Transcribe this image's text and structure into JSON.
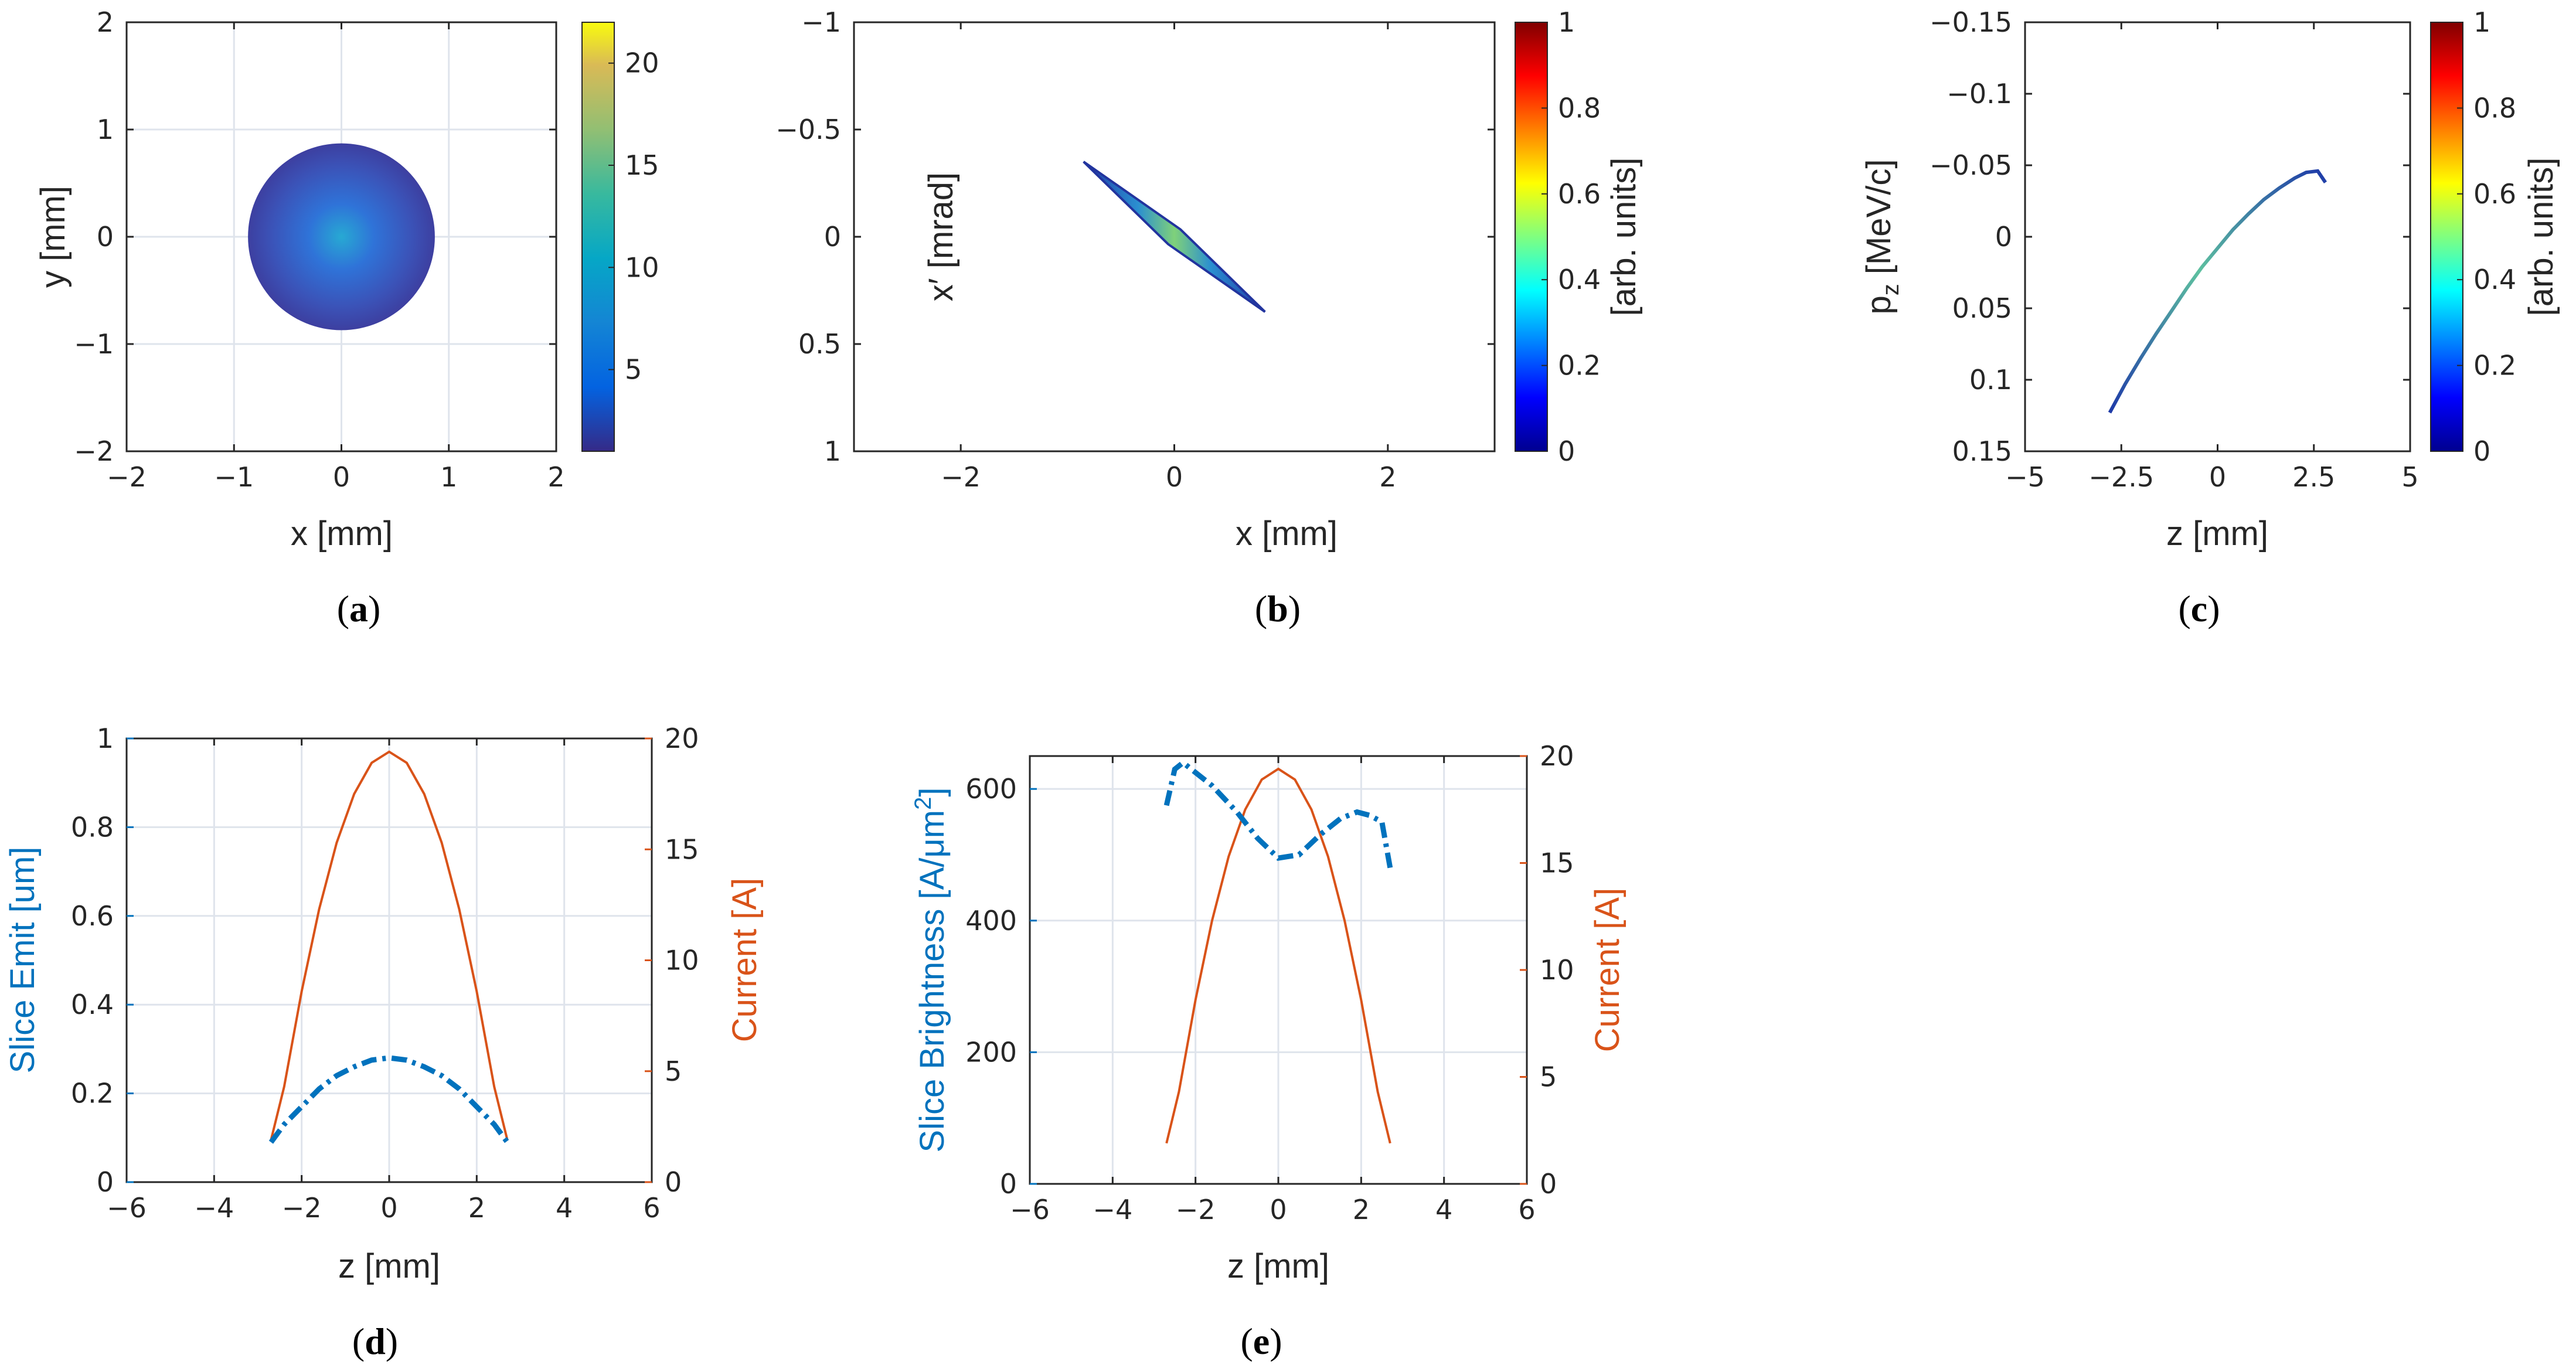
{
  "colors": {
    "blue": "#0072BD",
    "orange": "#D95319",
    "grid": "#dfe4ec",
    "axis": "#262626"
  },
  "chart_data": [
    {
      "id": "a",
      "type": "heatmap",
      "caption": "(a)",
      "xlabel": "x [mm]",
      "ylabel": "y [mm]",
      "xlim": [
        -2,
        2
      ],
      "ylim": [
        -2,
        2
      ],
      "xticks": [
        -2,
        -1,
        0,
        1,
        2
      ],
      "yticks": [
        2,
        1,
        0,
        -1,
        -2
      ],
      "xtick_labels": [
        "−2",
        "−1",
        "0",
        "1",
        "2"
      ],
      "ytick_labels": [
        "2",
        "1",
        "0",
        "−1",
        "−2"
      ],
      "grid": true,
      "beam": {
        "shape": "disk",
        "center": [
          0,
          0
        ],
        "radius_mm": 0.87
      },
      "colorbar": {
        "colormap": "parula",
        "range": [
          1,
          22
        ],
        "ticks": [
          5,
          10,
          15,
          20
        ],
        "tick_labels": [
          "5",
          "10",
          "15",
          "20"
        ],
        "label": ""
      }
    },
    {
      "id": "b",
      "type": "scatter",
      "caption": "(b)",
      "xlabel": "x [mm]",
      "ylabel": "x′ [mrad]",
      "xlim": [
        -3,
        3
      ],
      "ylim": [
        -1,
        1
      ],
      "y_reversed": true,
      "xticks": [
        -2,
        0,
        2
      ],
      "yticks": [
        -1,
        -0.5,
        0,
        0.5,
        1
      ],
      "xtick_labels": [
        "−2",
        "0",
        "2"
      ],
      "ytick_labels": [
        "−1",
        "−0.5",
        "0",
        "0.5",
        "1"
      ],
      "grid": false,
      "distribution": {
        "shape": "ellipse",
        "from": [
          -0.85,
          -0.35
        ],
        "to": [
          0.85,
          0.35
        ],
        "width_mm": 0.18
      },
      "colorbar": {
        "colormap": "jet",
        "range": [
          0,
          1
        ],
        "ticks": [
          0,
          0.2,
          0.4,
          0.6,
          0.8,
          1
        ],
        "tick_labels": [
          "0",
          "0.2",
          "0.4",
          "0.6",
          "0.8",
          "1"
        ],
        "label": "[arb. units]"
      }
    },
    {
      "id": "c",
      "type": "scatter",
      "caption": "(c)",
      "xlabel": "z [mm]",
      "ylabel": "p_z [MeV/c]",
      "ylabel_main": "p",
      "ylabel_sub": "z",
      "ylabel_rest": " [MeV/c]",
      "xlim": [
        -5,
        5
      ],
      "ylim": [
        -0.15,
        0.15
      ],
      "y_reversed": true,
      "xticks": [
        -5,
        -2.5,
        0,
        2.5,
        5
      ],
      "yticks": [
        -0.15,
        -0.1,
        -0.05,
        0,
        0.05,
        0.1,
        0.15
      ],
      "xtick_labels": [
        "−5",
        "−2.5",
        "0",
        "2.5",
        "5"
      ],
      "ytick_labels": [
        "−0.15",
        "−0.1",
        "−0.05",
        "0",
        "0.05",
        "0.1",
        "0.15"
      ],
      "grid": false,
      "x": [
        -2.8,
        -2.4,
        -2.0,
        -1.6,
        -1.2,
        -0.8,
        -0.4,
        0.0,
        0.4,
        0.8,
        1.2,
        1.6,
        2.0,
        2.3,
        2.6,
        2.8
      ],
      "y": [
        0.123,
        0.103,
        0.085,
        0.068,
        0.052,
        0.036,
        0.021,
        0.008,
        -0.005,
        -0.016,
        -0.026,
        -0.034,
        -0.041,
        -0.045,
        -0.046,
        -0.038
      ],
      "colorbar": {
        "colormap": "jet",
        "range": [
          0,
          1
        ],
        "ticks": [
          0,
          0.2,
          0.4,
          0.6,
          0.8,
          1
        ],
        "tick_labels": [
          "0",
          "0.2",
          "0.4",
          "0.6",
          "0.8",
          "1"
        ],
        "label": "[arb. units]"
      }
    },
    {
      "id": "d",
      "type": "line",
      "caption": "(d)",
      "xlabel": "z [mm]",
      "ylabel_left": "Slice Emit [um]",
      "ylabel_right": "Current [A]",
      "xlim": [
        -6,
        6
      ],
      "ylim_left": [
        0,
        1
      ],
      "ylim_right": [
        0,
        20
      ],
      "xticks": [
        -6,
        -4,
        -2,
        0,
        2,
        4,
        6
      ],
      "xtick_labels": [
        "−6",
        "−4",
        "−2",
        "0",
        "2",
        "4",
        "6"
      ],
      "yticks_left": [
        0,
        0.2,
        0.4,
        0.6,
        0.8,
        1
      ],
      "ytick_labels_left": [
        "0",
        "0.2",
        "0.4",
        "0.6",
        "0.8",
        "1"
      ],
      "yticks_right": [
        0,
        5,
        10,
        15,
        20
      ],
      "ytick_labels_right": [
        "0",
        "5",
        "10",
        "15",
        "20"
      ],
      "grid": true,
      "series": [
        {
          "name": "Slice Emit",
          "axis": "left",
          "color": "#0072BD",
          "style": "dashdot",
          "x": [
            -2.7,
            -2.4,
            -2.0,
            -1.6,
            -1.2,
            -0.8,
            -0.4,
            0.0,
            0.4,
            0.8,
            1.2,
            1.6,
            2.0,
            2.4,
            2.7
          ],
          "y": [
            0.09,
            0.13,
            0.17,
            0.21,
            0.24,
            0.26,
            0.275,
            0.28,
            0.275,
            0.26,
            0.24,
            0.21,
            0.17,
            0.13,
            0.09
          ]
        },
        {
          "name": "Current",
          "axis": "right",
          "color": "#D95319",
          "style": "solid",
          "x": [
            -2.7,
            -2.4,
            -2.0,
            -1.6,
            -1.2,
            -0.8,
            -0.4,
            0.0,
            0.4,
            0.8,
            1.2,
            1.6,
            2.0,
            2.4,
            2.7
          ],
          "y": [
            1.9,
            4.3,
            8.6,
            12.3,
            15.3,
            17.5,
            18.9,
            19.4,
            18.9,
            17.5,
            15.3,
            12.3,
            8.6,
            4.3,
            1.9
          ]
        }
      ]
    },
    {
      "id": "e",
      "type": "line",
      "caption": "(e)",
      "xlabel": "z [mm]",
      "ylabel_left": "Slice Brightness [A/μm²]",
      "ylabel_left_main": "Slice Brightness [A/μm",
      "ylabel_left_sup": "2",
      "ylabel_left_end": "]",
      "ylabel_right": "Current [A]",
      "xlim": [
        -6,
        6
      ],
      "ylim_left": [
        0,
        650
      ],
      "ylim_right": [
        0,
        20
      ],
      "xticks": [
        -6,
        -4,
        -2,
        0,
        2,
        4,
        6
      ],
      "xtick_labels": [
        "−6",
        "−4",
        "−2",
        "0",
        "2",
        "4",
        "6"
      ],
      "yticks_left": [
        0,
        200,
        400,
        600
      ],
      "ytick_labels_left": [
        "0",
        "200",
        "400",
        "600"
      ],
      "yticks_right": [
        0,
        5,
        10,
        15,
        20
      ],
      "ytick_labels_right": [
        "0",
        "5",
        "10",
        "15",
        "20"
      ],
      "grid": true,
      "series": [
        {
          "name": "Slice Brightness",
          "axis": "left",
          "color": "#0072BD",
          "style": "dashdot",
          "x": [
            -2.7,
            -2.5,
            -2.3,
            -2.1,
            -1.6,
            -1.0,
            -0.5,
            0.0,
            0.5,
            1.0,
            1.5,
            1.9,
            2.2,
            2.5,
            2.7
          ],
          "y": [
            575,
            630,
            640,
            630,
            605,
            565,
            525,
            495,
            500,
            530,
            555,
            565,
            560,
            550,
            480
          ]
        },
        {
          "name": "Current",
          "axis": "right",
          "color": "#D95319",
          "style": "solid",
          "x": [
            -2.7,
            -2.4,
            -2.0,
            -1.6,
            -1.2,
            -0.8,
            -0.4,
            0.0,
            0.4,
            0.8,
            1.2,
            1.6,
            2.0,
            2.4,
            2.7
          ],
          "y": [
            1.9,
            4.3,
            8.6,
            12.3,
            15.3,
            17.5,
            18.9,
            19.4,
            18.9,
            17.5,
            15.3,
            12.3,
            8.6,
            4.3,
            1.9
          ]
        }
      ]
    }
  ]
}
